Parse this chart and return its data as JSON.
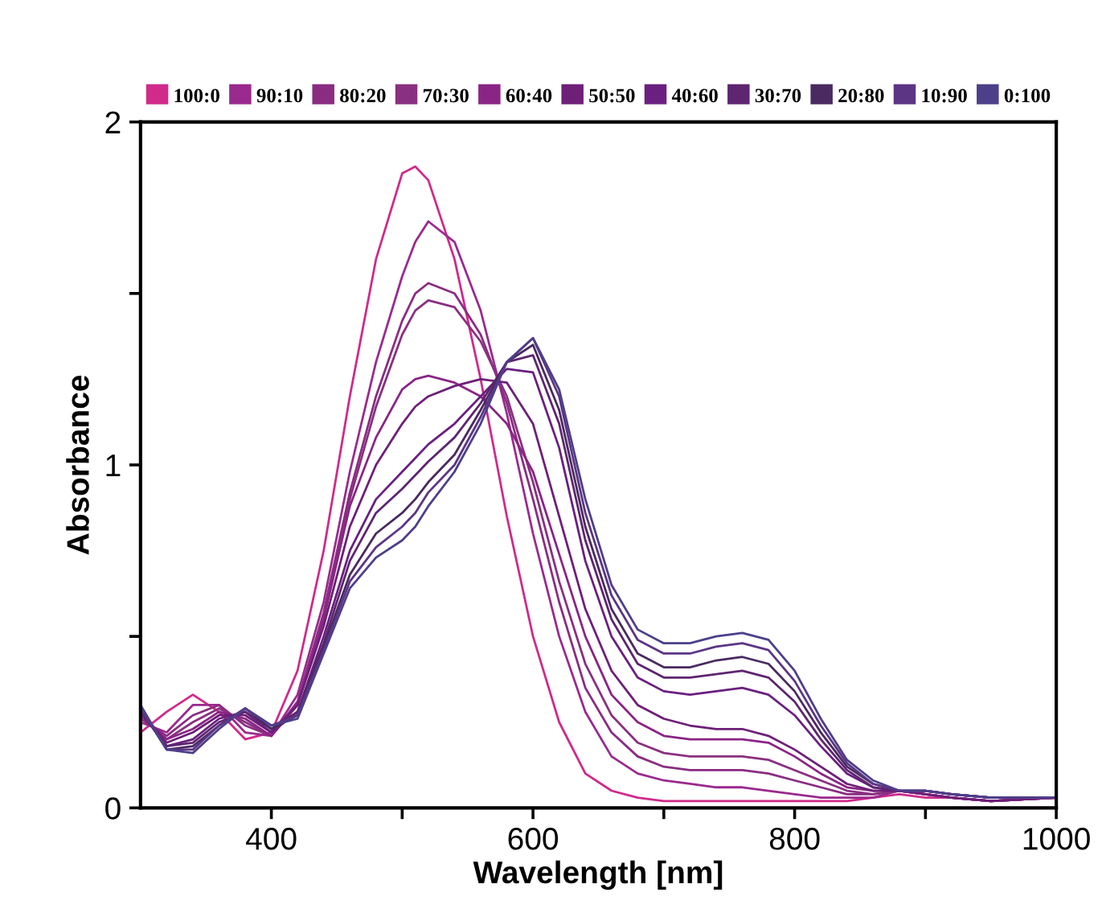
{
  "chart_data": {
    "type": "line",
    "xlabel": "Wavelength [nm]",
    "ylabel": "Absorbance",
    "x": [
      300,
      320,
      340,
      360,
      380,
      400,
      420,
      440,
      460,
      480,
      500,
      510,
      520,
      540,
      560,
      580,
      600,
      620,
      640,
      660,
      680,
      700,
      720,
      740,
      760,
      780,
      800,
      820,
      840,
      860,
      880,
      900,
      920,
      950,
      1000
    ],
    "xlim": [
      300,
      1000
    ],
    "xticks": [
      400,
      {
        "value": 500,
        "label": null
      },
      600,
      {
        "value": 700,
        "label": null
      },
      800,
      {
        "value": 900,
        "label": null
      },
      1000
    ],
    "ylim": [
      0,
      2
    ],
    "yticks": [
      0,
      {
        "value": 0.5,
        "label": null
      },
      1,
      {
        "value": 1.5,
        "label": null
      },
      2
    ],
    "grid": false,
    "legend": "top",
    "marker": "none",
    "line_style": "solid",
    "series": [
      {
        "name": "100:0",
        "color": "#d02a8a",
        "values": [
          0.22,
          0.28,
          0.33,
          0.28,
          0.2,
          0.22,
          0.4,
          0.75,
          1.2,
          1.6,
          1.85,
          1.87,
          1.83,
          1.6,
          1.25,
          0.85,
          0.5,
          0.25,
          0.1,
          0.05,
          0.03,
          0.02,
          0.02,
          0.02,
          0.02,
          0.02,
          0.02,
          0.02,
          0.02,
          0.03,
          0.04,
          0.03,
          0.03,
          0.02,
          0.03
        ]
      },
      {
        "name": "90:10",
        "color": "#9a2a8e",
        "values": [
          0.25,
          0.22,
          0.3,
          0.3,
          0.22,
          0.21,
          0.33,
          0.6,
          0.98,
          1.3,
          1.55,
          1.65,
          1.71,
          1.65,
          1.45,
          1.15,
          0.8,
          0.5,
          0.28,
          0.15,
          0.1,
          0.08,
          0.07,
          0.06,
          0.06,
          0.05,
          0.04,
          0.03,
          0.03,
          0.03,
          0.05,
          0.04,
          0.03,
          0.02,
          0.03
        ]
      },
      {
        "name": "80:20",
        "color": "#8a2c82",
        "values": [
          0.26,
          0.21,
          0.27,
          0.3,
          0.24,
          0.21,
          0.31,
          0.57,
          0.92,
          1.2,
          1.42,
          1.5,
          1.53,
          1.5,
          1.38,
          1.18,
          0.9,
          0.6,
          0.35,
          0.22,
          0.15,
          0.12,
          0.11,
          0.11,
          0.11,
          0.1,
          0.08,
          0.06,
          0.04,
          0.04,
          0.05,
          0.04,
          0.03,
          0.02,
          0.03
        ]
      },
      {
        "name": "70:30",
        "color": "#8a3080",
        "values": [
          0.27,
          0.2,
          0.25,
          0.29,
          0.25,
          0.21,
          0.3,
          0.56,
          0.9,
          1.17,
          1.38,
          1.45,
          1.48,
          1.46,
          1.36,
          1.2,
          0.95,
          0.66,
          0.42,
          0.27,
          0.19,
          0.16,
          0.15,
          0.15,
          0.15,
          0.14,
          0.11,
          0.08,
          0.05,
          0.04,
          0.05,
          0.04,
          0.03,
          0.02,
          0.03
        ]
      },
      {
        "name": "60:40",
        "color": "#8a2585",
        "values": [
          0.27,
          0.2,
          0.23,
          0.28,
          0.26,
          0.21,
          0.3,
          0.55,
          0.88,
          1.08,
          1.22,
          1.25,
          1.26,
          1.24,
          1.2,
          1.12,
          0.98,
          0.74,
          0.5,
          0.33,
          0.25,
          0.21,
          0.2,
          0.2,
          0.2,
          0.19,
          0.15,
          0.1,
          0.06,
          0.05,
          0.05,
          0.04,
          0.03,
          0.02,
          0.03
        ]
      },
      {
        "name": "50:50",
        "color": "#6e1f78",
        "values": [
          0.28,
          0.19,
          0.22,
          0.27,
          0.27,
          0.22,
          0.3,
          0.53,
          0.82,
          1.0,
          1.12,
          1.17,
          1.2,
          1.23,
          1.25,
          1.24,
          1.12,
          0.85,
          0.58,
          0.4,
          0.3,
          0.26,
          0.24,
          0.23,
          0.23,
          0.21,
          0.17,
          0.12,
          0.07,
          0.05,
          0.05,
          0.04,
          0.03,
          0.02,
          0.03
        ]
      },
      {
        "name": "40:60",
        "color": "#6a2080",
        "values": [
          0.28,
          0.18,
          0.2,
          0.26,
          0.28,
          0.22,
          0.28,
          0.5,
          0.75,
          0.9,
          0.98,
          1.02,
          1.06,
          1.12,
          1.2,
          1.28,
          1.27,
          1.05,
          0.72,
          0.5,
          0.38,
          0.34,
          0.33,
          0.34,
          0.35,
          0.33,
          0.27,
          0.18,
          0.1,
          0.06,
          0.05,
          0.05,
          0.04,
          0.03,
          0.03
        ]
      },
      {
        "name": "30:70",
        "color": "#5e2570",
        "values": [
          0.28,
          0.18,
          0.19,
          0.25,
          0.28,
          0.23,
          0.28,
          0.48,
          0.72,
          0.86,
          0.93,
          0.97,
          1.01,
          1.08,
          1.18,
          1.3,
          1.32,
          1.12,
          0.78,
          0.55,
          0.42,
          0.38,
          0.38,
          0.39,
          0.4,
          0.38,
          0.31,
          0.2,
          0.11,
          0.06,
          0.05,
          0.05,
          0.04,
          0.03,
          0.03
        ]
      },
      {
        "name": "20:80",
        "color": "#4a2a60",
        "values": [
          0.29,
          0.17,
          0.18,
          0.24,
          0.29,
          0.23,
          0.27,
          0.47,
          0.68,
          0.8,
          0.86,
          0.9,
          0.95,
          1.03,
          1.16,
          1.3,
          1.35,
          1.16,
          0.82,
          0.58,
          0.45,
          0.41,
          0.41,
          0.43,
          0.44,
          0.42,
          0.34,
          0.22,
          0.12,
          0.07,
          0.05,
          0.05,
          0.04,
          0.03,
          0.03
        ]
      },
      {
        "name": "10:90",
        "color": "#5c3585",
        "values": [
          0.29,
          0.17,
          0.17,
          0.24,
          0.29,
          0.24,
          0.27,
          0.46,
          0.66,
          0.76,
          0.82,
          0.86,
          0.92,
          1.0,
          1.14,
          1.3,
          1.37,
          1.2,
          0.86,
          0.62,
          0.49,
          0.45,
          0.45,
          0.47,
          0.48,
          0.46,
          0.37,
          0.24,
          0.13,
          0.07,
          0.05,
          0.05,
          0.04,
          0.03,
          0.03
        ]
      },
      {
        "name": "0:100",
        "color": "#4e3f8a",
        "values": [
          0.3,
          0.17,
          0.16,
          0.23,
          0.29,
          0.24,
          0.26,
          0.45,
          0.64,
          0.73,
          0.78,
          0.82,
          0.88,
          0.98,
          1.12,
          1.3,
          1.37,
          1.22,
          0.9,
          0.65,
          0.52,
          0.48,
          0.48,
          0.5,
          0.51,
          0.49,
          0.4,
          0.26,
          0.14,
          0.08,
          0.05,
          0.05,
          0.04,
          0.03,
          0.03
        ]
      }
    ]
  }
}
